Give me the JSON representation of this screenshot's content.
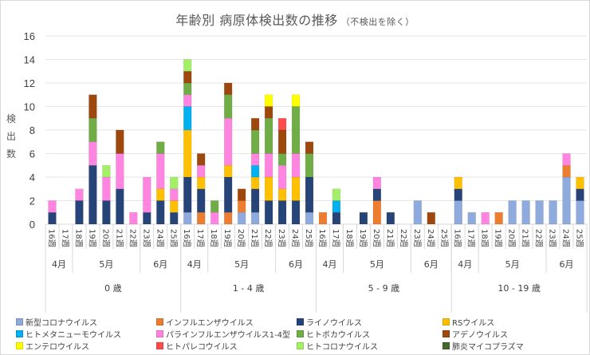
{
  "chart_data": {
    "type": "bar",
    "stacked": true,
    "title": "年齢別 病原体検出数の推移",
    "subtitle": "（不検出を除く）",
    "ylabel": "検出数",
    "xlabel": "",
    "ylim": [
      0,
      16
    ],
    "yticks": [
      0,
      2,
      4,
      6,
      8,
      10,
      12,
      14,
      16
    ],
    "grid": true,
    "legend_position": "bottom",
    "week_labels": [
      "16週",
      "17週",
      "18週",
      "19週",
      "20週",
      "21週",
      "22週",
      "23週",
      "24週",
      "25週"
    ],
    "months": [
      {
        "label": "4月",
        "weeks": 2
      },
      {
        "label": "5月",
        "weeks": 5
      },
      {
        "label": "6月",
        "weeks": 3
      }
    ],
    "age_groups": [
      "0 歳",
      "1 - 4 歳",
      "5 - 9 歳",
      "10 - 19 歳"
    ],
    "series": [
      {
        "name": "新型コロナウイルス",
        "color": "#8faadc",
        "values": [
          [
            0,
            0,
            0,
            0,
            0,
            0,
            0,
            0,
            0,
            0
          ],
          [
            1,
            0,
            0,
            0,
            1,
            1,
            0,
            0,
            0,
            1
          ],
          [
            0,
            0,
            0,
            0,
            0,
            0,
            0,
            2,
            0,
            0
          ],
          [
            2,
            1,
            0,
            0,
            2,
            2,
            2,
            2,
            4,
            2
          ]
        ]
      },
      {
        "name": "インフルエンザウイルス",
        "color": "#ed7d31",
        "values": [
          [
            0,
            0,
            0,
            0,
            0,
            0,
            0,
            0,
            0,
            0
          ],
          [
            0,
            1,
            0,
            1,
            1,
            0,
            0,
            0,
            0,
            0
          ],
          [
            1,
            0,
            0,
            0,
            2,
            0,
            0,
            0,
            0,
            0
          ],
          [
            0,
            0,
            0,
            1,
            0,
            0,
            0,
            0,
            1,
            0
          ]
        ]
      },
      {
        "name": "ライノウイルス",
        "color": "#264478",
        "values": [
          [
            1,
            0,
            2,
            5,
            2,
            3,
            0,
            1,
            2,
            1
          ],
          [
            3,
            2,
            0,
            3,
            0,
            2,
            2,
            2,
            2,
            3
          ],
          [
            0,
            1,
            0,
            1,
            1,
            1,
            0,
            0,
            0,
            0
          ],
          [
            1,
            0,
            0,
            0,
            0,
            0,
            0,
            0,
            0,
            1
          ]
        ]
      },
      {
        "name": "RSウイルス",
        "color": "#ffc000",
        "values": [
          [
            0,
            0,
            0,
            0,
            0,
            0,
            0,
            0,
            1,
            1
          ],
          [
            4,
            1,
            0,
            1,
            0,
            1,
            2,
            1,
            2,
            0
          ],
          [
            0,
            0,
            0,
            0,
            0,
            0,
            0,
            0,
            0,
            0
          ],
          [
            1,
            0,
            0,
            0,
            0,
            0,
            0,
            0,
            0,
            1
          ]
        ]
      },
      {
        "name": "ヒトメタニューモウイルス",
        "color": "#00b0f0",
        "values": [
          [
            0,
            0,
            0,
            0,
            0,
            0,
            0,
            0,
            0,
            0
          ],
          [
            2,
            0,
            0,
            0,
            0,
            1,
            0,
            0,
            0,
            0
          ],
          [
            0,
            1,
            0,
            0,
            0,
            0,
            0,
            0,
            0,
            0
          ],
          [
            0,
            0,
            0,
            0,
            0,
            0,
            0,
            0,
            0,
            0
          ]
        ]
      },
      {
        "name": "パラインフルエンザウイルス1-4型",
        "color": "#ff85e0",
        "values": [
          [
            1,
            0,
            1,
            2,
            2,
            3,
            1,
            3,
            3,
            1
          ],
          [
            1,
            1,
            1,
            4,
            0,
            1,
            2,
            2,
            2,
            0
          ],
          [
            0,
            0,
            0,
            0,
            1,
            0,
            0,
            0,
            0,
            0
          ],
          [
            0,
            0,
            1,
            0,
            0,
            0,
            0,
            0,
            1,
            0
          ]
        ]
      },
      {
        "name": "ヒトボカウイルス",
        "color": "#70ad47",
        "values": [
          [
            0,
            0,
            0,
            2,
            0,
            0,
            0,
            0,
            1,
            0
          ],
          [
            1,
            0,
            1,
            2,
            0,
            2,
            3,
            1,
            4,
            2
          ],
          [
            0,
            0,
            0,
            0,
            0,
            0,
            0,
            0,
            0,
            0
          ],
          [
            0,
            0,
            0,
            0,
            0,
            0,
            0,
            0,
            0,
            0
          ]
        ]
      },
      {
        "name": "アデノウイルス",
        "color": "#9e480e",
        "values": [
          [
            0,
            0,
            0,
            2,
            0,
            2,
            0,
            0,
            0,
            0
          ],
          [
            1,
            1,
            0,
            1,
            1,
            1,
            1,
            2,
            0,
            1
          ],
          [
            0,
            0,
            0,
            0,
            0,
            0,
            0,
            0,
            1,
            0
          ],
          [
            0,
            0,
            0,
            0,
            0,
            0,
            0,
            0,
            0,
            0
          ]
        ]
      },
      {
        "name": "エンテロウイルス",
        "color": "#ffff00",
        "values": [
          [
            0,
            0,
            0,
            0,
            0,
            0,
            0,
            0,
            0,
            0
          ],
          [
            0,
            0,
            0,
            0,
            0,
            0,
            1,
            0,
            1,
            0
          ],
          [
            0,
            0,
            0,
            0,
            0,
            0,
            0,
            0,
            0,
            0
          ],
          [
            0,
            0,
            0,
            0,
            0,
            0,
            0,
            0,
            0,
            0
          ]
        ]
      },
      {
        "name": "ヒトパレコウイルス",
        "color": "#ff4b4b",
        "values": [
          [
            0,
            0,
            0,
            0,
            0,
            0,
            0,
            0,
            0,
            0
          ],
          [
            0,
            0,
            0,
            0,
            0,
            0,
            0,
            1,
            0,
            0
          ],
          [
            0,
            0,
            0,
            0,
            0,
            0,
            0,
            0,
            0,
            0
          ],
          [
            0,
            0,
            0,
            0,
            0,
            0,
            0,
            0,
            0,
            0
          ]
        ]
      },
      {
        "name": "ヒトコロナウイルス",
        "color": "#a3f066",
        "values": [
          [
            0,
            0,
            0,
            0,
            1,
            0,
            0,
            0,
            0,
            1
          ],
          [
            1,
            0,
            0,
            0,
            0,
            0,
            0,
            0,
            0,
            0
          ],
          [
            0,
            1,
            0,
            0,
            0,
            0,
            0,
            0,
            0,
            0
          ],
          [
            0,
            0,
            0,
            0,
            0,
            0,
            0,
            0,
            0,
            0
          ]
        ]
      },
      {
        "name": "肺炎マイコプラズマ",
        "color": "#43682b",
        "values": [
          [
            0,
            0,
            0,
            0,
            0,
            0,
            0,
            0,
            0,
            0
          ],
          [
            0,
            0,
            0,
            0,
            0,
            0,
            0,
            0,
            0,
            0
          ],
          [
            0,
            0,
            0,
            0,
            0,
            0,
            0,
            0,
            0,
            0
          ],
          [
            0,
            0,
            0,
            0,
            0,
            0,
            0,
            0,
            0,
            0
          ]
        ]
      }
    ],
    "legend_order": [
      0,
      1,
      2,
      3,
      4,
      5,
      6,
      7,
      8,
      9,
      10,
      11
    ]
  }
}
